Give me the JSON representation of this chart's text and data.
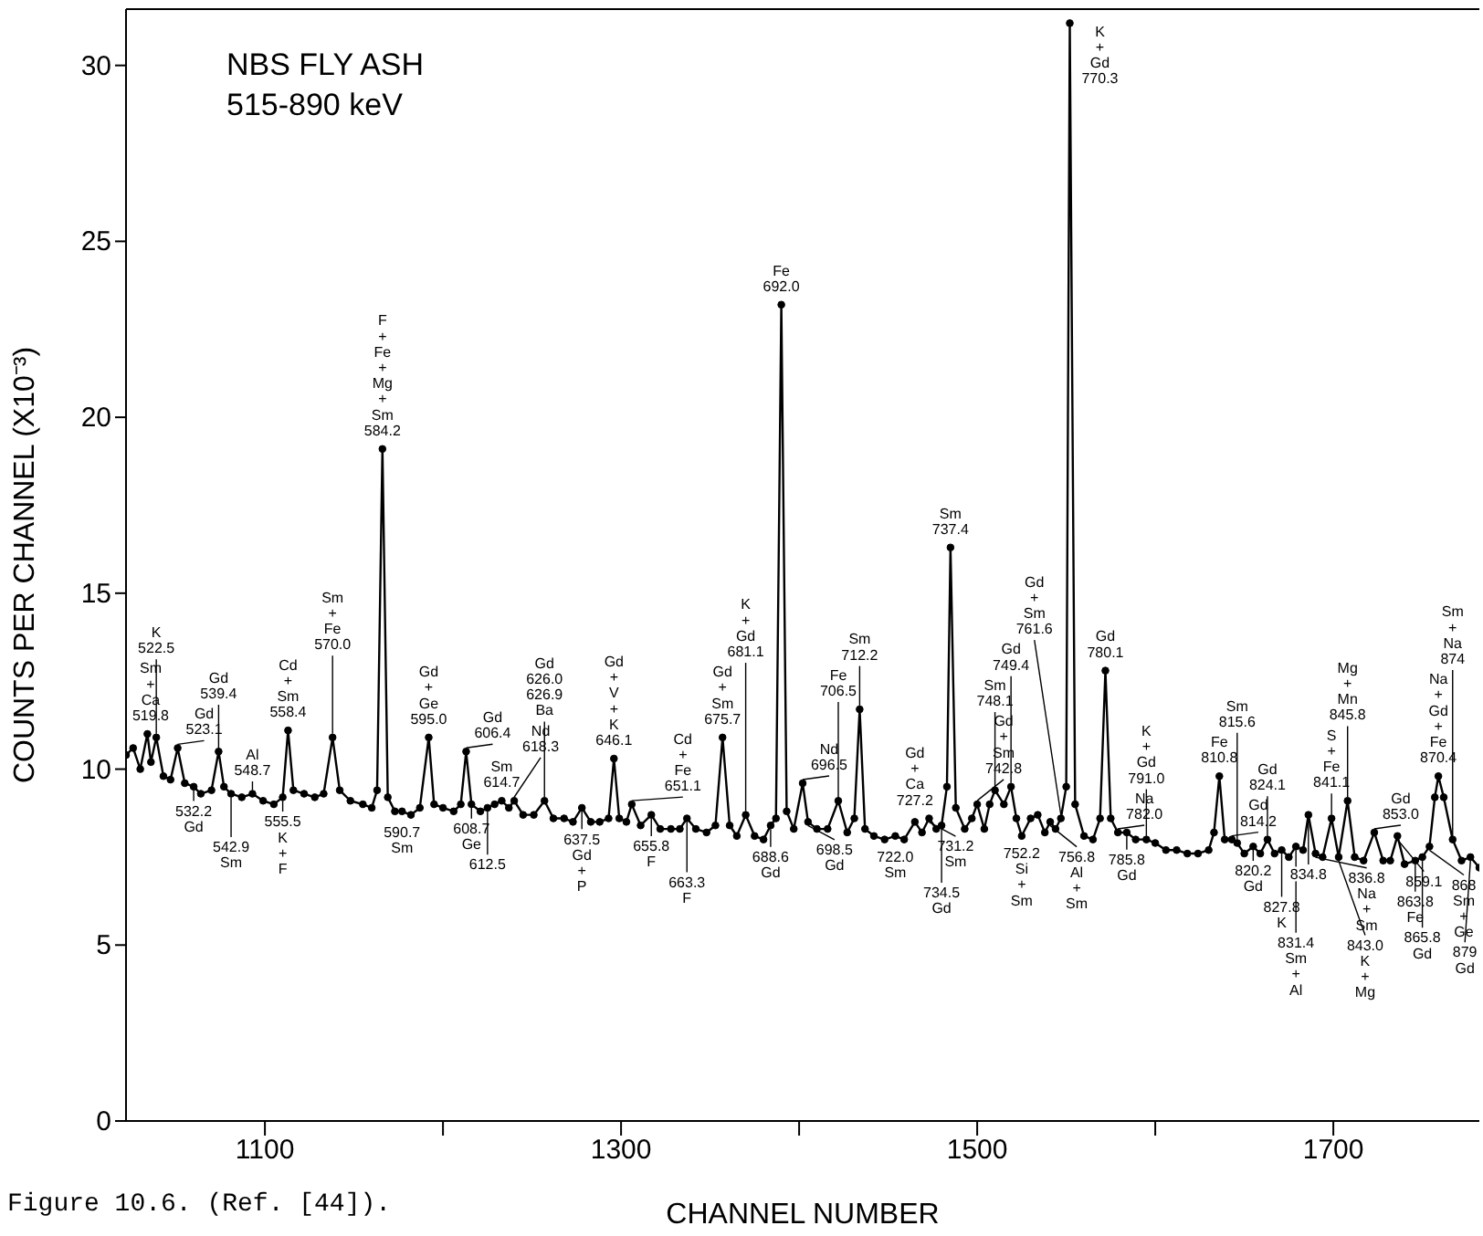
{
  "chart_data": {
    "type": "line",
    "title": "NBS FLY ASH\n515-890 keV",
    "xlabel": "CHANNEL NUMBER",
    "ylabel": "COUNTS PER CHANNEL (X10⁻³)",
    "xlim": [
      1022,
      1782
    ],
    "xticks": [
      1100,
      {
        "value": 1200,
        "label": null
      },
      1300,
      {
        "value": 1400,
        "label": null
      },
      1500,
      {
        "value": 1600,
        "label": null
      },
      1700
    ],
    "ylim": [
      0,
      31.6
    ],
    "yticks": [
      0,
      5,
      10,
      15,
      20,
      25,
      30
    ],
    "marker": "circle",
    "line_style": "solid",
    "series": [
      {
        "color": "#000000",
        "x": [
          1022,
          1026,
          1030,
          1034,
          1036,
          1039,
          1043,
          1047,
          1051,
          1055,
          1060,
          1064,
          1070,
          1074,
          1077,
          1081,
          1087,
          1093,
          1099,
          1105,
          1110,
          1113,
          1116,
          1122,
          1128,
          1133,
          1138,
          1142,
          1148,
          1155,
          1160,
          1163,
          1166,
          1169,
          1173,
          1177,
          1182,
          1187,
          1192,
          1195,
          1200,
          1206,
          1210,
          1213,
          1216,
          1221,
          1225,
          1229,
          1233,
          1237,
          1240,
          1245,
          1251,
          1257,
          1262,
          1268,
          1273,
          1278,
          1283,
          1288,
          1293,
          1296,
          1299,
          1303,
          1306,
          1311,
          1317,
          1322,
          1328,
          1333,
          1337,
          1342,
          1348,
          1353,
          1357,
          1361,
          1365,
          1370,
          1375,
          1380,
          1384,
          1387,
          1390,
          1393,
          1397,
          1402,
          1405,
          1410,
          1416,
          1422,
          1427,
          1431,
          1434,
          1437,
          1442,
          1448,
          1454,
          1459,
          1465,
          1469,
          1473,
          1477,
          1480,
          1483,
          1485,
          1488,
          1493,
          1497,
          1500,
          1504,
          1507,
          1510,
          1515,
          1519,
          1522,
          1525,
          1530,
          1534,
          1538,
          1541,
          1544,
          1547,
          1550,
          1552,
          1555,
          1560,
          1565,
          1569,
          1572,
          1575,
          1579,
          1584,
          1589,
          1595,
          1600,
          1606,
          1612,
          1618,
          1624,
          1630,
          1633,
          1636,
          1639,
          1643,
          1646,
          1650,
          1655,
          1659,
          1663,
          1667,
          1671,
          1675,
          1679,
          1683,
          1686,
          1690,
          1694,
          1699,
          1703,
          1708,
          1712,
          1717,
          1723,
          1728,
          1732,
          1736,
          1740,
          1746,
          1750,
          1754,
          1757,
          1759,
          1762,
          1767,
          1772,
          1777,
          1782
        ],
        "values": [
          10.4,
          10.6,
          10.0,
          11.0,
          10.2,
          10.9,
          9.8,
          9.7,
          10.6,
          9.6,
          9.5,
          9.3,
          9.4,
          10.5,
          9.5,
          9.3,
          9.2,
          9.3,
          9.1,
          9.0,
          9.2,
          11.1,
          9.4,
          9.3,
          9.2,
          9.3,
          10.9,
          9.4,
          9.1,
          9.0,
          8.9,
          9.4,
          19.1,
          9.2,
          8.8,
          8.8,
          8.7,
          8.9,
          10.9,
          9.0,
          8.9,
          8.8,
          9.0,
          10.5,
          9.0,
          8.8,
          8.9,
          9.0,
          9.1,
          8.9,
          9.1,
          8.7,
          8.7,
          9.1,
          8.6,
          8.6,
          8.5,
          8.9,
          8.5,
          8.5,
          8.6,
          10.3,
          8.6,
          8.5,
          9.0,
          8.4,
          8.7,
          8.3,
          8.3,
          8.3,
          8.6,
          8.3,
          8.2,
          8.4,
          10.9,
          8.4,
          8.1,
          8.7,
          8.1,
          8.0,
          8.4,
          8.6,
          23.2,
          8.8,
          8.3,
          9.6,
          8.5,
          8.3,
          8.3,
          9.1,
          8.2,
          8.6,
          11.7,
          8.3,
          8.1,
          8.0,
          8.1,
          8.0,
          8.5,
          8.2,
          8.6,
          8.3,
          8.4,
          9.5,
          16.3,
          8.9,
          8.3,
          8.6,
          9.0,
          8.3,
          9.0,
          9.4,
          9.0,
          9.5,
          8.6,
          8.1,
          8.6,
          8.7,
          8.2,
          8.5,
          8.3,
          8.6,
          9.5,
          31.2,
          9.0,
          8.1,
          8.0,
          8.6,
          12.8,
          8.6,
          8.2,
          8.2,
          8.0,
          8.0,
          7.9,
          7.7,
          7.7,
          7.6,
          7.6,
          7.7,
          8.2,
          9.8,
          8.0,
          8.0,
          7.9,
          7.6,
          7.8,
          7.6,
          8.0,
          7.6,
          7.7,
          7.5,
          7.8,
          7.7,
          8.7,
          7.6,
          7.5,
          8.6,
          7.5,
          9.1,
          7.5,
          7.4,
          8.2,
          7.4,
          7.4,
          8.1,
          7.3,
          7.4,
          7.5,
          7.8,
          9.2,
          9.8,
          9.2,
          8.0,
          7.4,
          7.5,
          7.2
        ]
      }
    ],
    "annotations": [
      "Figure 10.6. (Ref. [44]).",
      {
        "text": "Sm\n+\nCa\n519.8",
        "x": 1034,
        "y": 11.0
      },
      {
        "text": "K\n522.5",
        "x": 1039,
        "y": 10.9
      },
      {
        "text": "Gd\n523.1",
        "x": 1051,
        "y": 10.6
      },
      {
        "text": "532.2\nGd",
        "x": 1060,
        "y": 9.5
      },
      {
        "text": "Gd\n539.4",
        "x": 1074,
        "y": 10.5
      },
      {
        "text": "542.9\nSm",
        "x": 1081,
        "y": 9.3
      },
      {
        "text": "Al\n548.7",
        "x": 1093,
        "y": 9.3
      },
      {
        "text": "555.5\nK\n+\nF",
        "x": 1110,
        "y": 9.2
      },
      {
        "text": "Cd\n+\nSm\n558.4",
        "x": 1113,
        "y": 11.1
      },
      {
        "text": "Sm\n+\nFe\n570.0",
        "x": 1138,
        "y": 10.9
      },
      {
        "text": "F\n+\nFe\n+\nMg\n+\nSm\n584.2",
        "x": 1166,
        "y": 19.1
      },
      {
        "text": "590.7\nSm",
        "x": 1177,
        "y": 8.8
      },
      {
        "text": "Gd\n+\nGe\n595.0",
        "x": 1192,
        "y": 10.9
      },
      {
        "text": "Gd\n606.4",
        "x": 1213,
        "y": 10.5
      },
      {
        "text": "608.7\nGe",
        "x": 1216,
        "y": 9.0
      },
      {
        "text": "612.5",
        "x": 1225,
        "y": 8.9
      },
      {
        "text": "Sm\n614.7",
        "x": 1233,
        "y": 9.1
      },
      {
        "text": "Nd\n618.3",
        "x": 1240,
        "y": 9.1
      },
      {
        "text": "Gd\n626.0\n626.9\nBa",
        "x": 1257,
        "y": 9.1
      },
      {
        "text": "637.5\nGd\n+\nP",
        "x": 1278,
        "y": 8.9
      },
      {
        "text": "Gd\n+\nV\n+\nK\n646.1",
        "x": 1296,
        "y": 10.3
      },
      {
        "text": "Cd\n+\nFe\n651.1",
        "x": 1306,
        "y": 9.0
      },
      {
        "text": "655.8\nF",
        "x": 1317,
        "y": 8.7
      },
      {
        "text": "663.3\nF",
        "x": 1337,
        "y": 8.6
      },
      {
        "text": "Gd\n+\nSm\n675.7",
        "x": 1357,
        "y": 10.9
      },
      {
        "text": "K\n+\nGd\n681.1",
        "x": 1370,
        "y": 8.7
      },
      {
        "text": "688.6\nGd",
        "x": 1384,
        "y": 8.4
      },
      {
        "text": "Fe\n692.0",
        "x": 1390,
        "y": 23.2
      },
      {
        "text": "Nd\n696.5",
        "x": 1402,
        "y": 9.6
      },
      {
        "text": "698.5\nGd",
        "x": 1405,
        "y": 8.5
      },
      {
        "text": "Fe\n706.5",
        "x": 1422,
        "y": 9.1
      },
      {
        "text": "Sm\n712.2",
        "x": 1434,
        "y": 11.7
      },
      {
        "text": "722.0\nSm",
        "x": 1454,
        "y": 8.1
      },
      {
        "text": "Gd\n+\nCa\n727.2",
        "x": 1465,
        "y": 8.5
      },
      {
        "text": "731.2\nSm",
        "x": 1473,
        "y": 8.6
      },
      {
        "text": "734.5\nGd",
        "x": 1480,
        "y": 8.4
      },
      {
        "text": "Sm\n737.4",
        "x": 1485,
        "y": 16.3
      },
      {
        "text": "Gd\n+\nSm\n742.8",
        "x": 1500,
        "y": 9.0
      },
      {
        "text": "Sm\n748.1",
        "x": 1510,
        "y": 9.4
      },
      {
        "text": "Gd\n749.4",
        "x": 1519,
        "y": 9.5
      },
      {
        "text": "752.2\nSi\n+\nSm",
        "x": 1525,
        "y": 8.1
      },
      {
        "text": "756.8\nAl\n+\nSm",
        "x": 1541,
        "y": 8.5
      },
      {
        "text": "Gd\n+\nSm\n761.6",
        "x": 1547,
        "y": 8.6
      },
      {
        "text": "K\n+\nGd\n770.3",
        "x": 1552,
        "y": 31.2
      },
      {
        "text": "Gd\n780.1",
        "x": 1572,
        "y": 12.8
      },
      {
        "text": "Na\n782.0",
        "x": 1579,
        "y": 8.2
      },
      {
        "text": "785.8\nGd",
        "x": 1584,
        "y": 8.2
      },
      {
        "text": "K\n+\nGd\n791.0",
        "x": 1595,
        "y": 8.0
      },
      {
        "text": "Fe\n810.8",
        "x": 1636,
        "y": 9.8
      },
      {
        "text": "Gd\n814.2",
        "x": 1643,
        "y": 8.0
      },
      {
        "text": "Sm\n815.6",
        "x": 1646,
        "y": 7.9
      },
      {
        "text": "820.2\nGd",
        "x": 1655,
        "y": 7.8
      },
      {
        "text": "Gd\n824.1",
        "x": 1663,
        "y": 8.0
      },
      {
        "text": "827.8\nK",
        "x": 1671,
        "y": 7.7
      },
      {
        "text": "831.4\nSm\n+\nAl",
        "x": 1679,
        "y": 7.8
      },
      {
        "text": "834.8",
        "x": 1686,
        "y": 8.7
      },
      {
        "text": "836.8\nNa\n+\nSm",
        "x": 1690,
        "y": 7.6
      },
      {
        "text": "S\n+\nFe\n841.1",
        "x": 1699,
        "y": 8.6
      },
      {
        "text": "843.0\nK\n+\nMg",
        "x": 1703,
        "y": 7.5
      },
      {
        "text": "Mg\n+\nMn\n845.8",
        "x": 1708,
        "y": 9.1
      },
      {
        "text": "Gd\n853.0",
        "x": 1723,
        "y": 8.2
      },
      {
        "text": "859.1",
        "x": 1736,
        "y": 8.1
      },
      {
        "text": "863.8\nFe",
        "x": 1746,
        "y": 7.4
      },
      {
        "text": "865.8\nGd",
        "x": 1750,
        "y": 7.5
      },
      {
        "text": "868\nSm\n+\nGe",
        "x": 1754,
        "y": 7.8
      },
      {
        "text": "Na\n+\nGd\n+\nFe\n870.4",
        "x": 1759,
        "y": 9.8
      },
      {
        "text": "Sm\n+\nNa\n874",
        "x": 1767,
        "y": 8.0
      },
      {
        "text": "879\nGd",
        "x": 1777,
        "y": 7.5
      }
    ]
  }
}
